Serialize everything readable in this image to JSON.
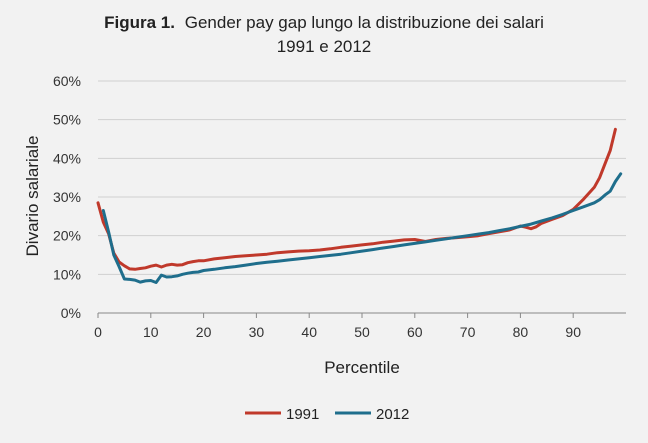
{
  "chart_data": {
    "type": "line",
    "title_prefix": "Figura 1.",
    "title_line1": "Gender pay gap lungo la distribuzione dei salari",
    "title_line2": "1991 e 2012",
    "xlabel": "Percentile",
    "ylabel": "Divario salariale",
    "xlim": [
      0,
      100
    ],
    "ylim": [
      0,
      60
    ],
    "x_ticks": [
      "0",
      "10",
      "20",
      "30",
      "40",
      "50",
      "60",
      "70",
      "80",
      "90"
    ],
    "y_ticks": [
      "0%",
      "10%",
      "20%",
      "30%",
      "40%",
      "50%",
      "60%"
    ],
    "grid": true,
    "legend_position": "bottom",
    "series": [
      {
        "name": "1991",
        "color": "#c0392b",
        "x": [
          0,
          1,
          2,
          3,
          4,
          5,
          6,
          7,
          8,
          9,
          10,
          11,
          12,
          13,
          14,
          15,
          16,
          17,
          18,
          19,
          20,
          22,
          24,
          26,
          28,
          30,
          32,
          34,
          36,
          38,
          40,
          42,
          44,
          46,
          48,
          50,
          52,
          54,
          56,
          58,
          60,
          62,
          64,
          66,
          68,
          70,
          72,
          74,
          76,
          78,
          80,
          81,
          82,
          83,
          84,
          86,
          88,
          90,
          92,
          94,
          95,
          96,
          97,
          98
        ],
        "y": [
          28.5,
          23.5,
          20.5,
          15.5,
          13.2,
          12.2,
          11.4,
          11.3,
          11.5,
          11.7,
          12.1,
          12.4,
          11.9,
          12.4,
          12.6,
          12.4,
          12.5,
          13.0,
          13.3,
          13.5,
          13.5,
          14.0,
          14.3,
          14.6,
          14.8,
          15.0,
          15.2,
          15.6,
          15.8,
          16.0,
          16.1,
          16.3,
          16.6,
          17.0,
          17.3,
          17.6,
          17.9,
          18.3,
          18.6,
          18.9,
          19.0,
          18.5,
          19.0,
          19.3,
          19.5,
          19.7,
          20.0,
          20.5,
          21.0,
          21.5,
          22.5,
          22.2,
          21.8,
          22.3,
          23.2,
          24.2,
          25.2,
          26.8,
          29.5,
          32.5,
          35.0,
          38.5,
          42.0,
          47.5
        ]
      },
      {
        "name": "2012",
        "color": "#1f6e8c",
        "x": [
          1,
          2,
          3,
          4,
          5,
          6,
          7,
          8,
          9,
          10,
          11,
          12,
          13,
          14,
          15,
          16,
          17,
          18,
          19,
          20,
          22,
          24,
          26,
          28,
          30,
          32,
          34,
          36,
          38,
          40,
          42,
          44,
          46,
          48,
          50,
          52,
          54,
          56,
          58,
          60,
          62,
          64,
          66,
          68,
          70,
          72,
          74,
          76,
          78,
          80,
          82,
          84,
          86,
          88,
          90,
          92,
          94,
          95,
          96,
          97,
          98,
          99
        ],
        "y": [
          26.5,
          21.0,
          15.0,
          12.0,
          8.8,
          8.7,
          8.5,
          8.0,
          8.3,
          8.4,
          7.9,
          9.8,
          9.3,
          9.4,
          9.6,
          10.0,
          10.3,
          10.5,
          10.6,
          11.0,
          11.3,
          11.7,
          12.0,
          12.4,
          12.8,
          13.1,
          13.4,
          13.7,
          14.0,
          14.3,
          14.6,
          14.9,
          15.2,
          15.6,
          16.0,
          16.4,
          16.8,
          17.2,
          17.6,
          18.0,
          18.4,
          18.8,
          19.2,
          19.6,
          20.0,
          20.4,
          20.8,
          21.3,
          21.8,
          22.4,
          23.0,
          23.8,
          24.6,
          25.5,
          26.5,
          27.5,
          28.5,
          29.3,
          30.5,
          31.5,
          34.0,
          36.0
        ]
      }
    ]
  }
}
